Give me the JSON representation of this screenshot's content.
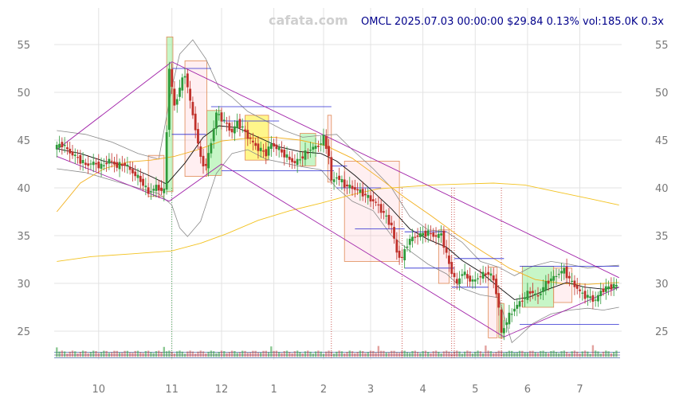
{
  "watermark": "cafata.com",
  "title": "OMCL 2025.07.03 00:00:00 $29.84 0.13% vol:185.0K 0.3x",
  "chart_data": {
    "type": "candlestick",
    "ylim": [
      22,
      58
    ],
    "y_ticks": [
      25,
      30,
      35,
      40,
      45,
      50,
      55
    ],
    "x_ticks": [
      {
        "label": "10",
        "x": 9.55
      },
      {
        "label": "11",
        "x": 10.95
      },
      {
        "label": "12",
        "x": 11.9
      },
      {
        "label": "1",
        "x": 12.9
      },
      {
        "label": "2",
        "x": 13.85
      },
      {
        "label": "3",
        "x": 14.75
      },
      {
        "label": "4",
        "x": 15.75
      },
      {
        "label": "5",
        "x": 16.75
      },
      {
        "label": "6",
        "x": 17.75
      },
      {
        "label": "7",
        "x": 18.75
      }
    ],
    "xlim": [
      8.7,
      19.05
    ],
    "grid": true,
    "price_path": [
      [
        8.75,
        44.2
      ],
      [
        8.9,
        44.6
      ],
      [
        9.05,
        43.7
      ],
      [
        9.2,
        43.1
      ],
      [
        9.35,
        42.4
      ],
      [
        9.5,
        42.6
      ],
      [
        9.65,
        42.2
      ],
      [
        9.8,
        42.9
      ],
      [
        9.95,
        42.3
      ],
      [
        10.1,
        42.5
      ],
      [
        10.25,
        41.6
      ],
      [
        10.4,
        40.8
      ],
      [
        10.55,
        39.5
      ],
      [
        10.7,
        40.1
      ],
      [
        10.85,
        39.6
      ],
      [
        10.95,
        52.5
      ],
      [
        11.05,
        48.5
      ],
      [
        11.15,
        50.5
      ],
      [
        11.25,
        52.0
      ],
      [
        11.35,
        49.0
      ],
      [
        11.45,
        46.2
      ],
      [
        11.55,
        43.0
      ],
      [
        11.65,
        42.2
      ],
      [
        11.75,
        44.8
      ],
      [
        11.85,
        47.8
      ],
      [
        11.95,
        47.3
      ],
      [
        12.05,
        46.6
      ],
      [
        12.15,
        45.8
      ],
      [
        12.25,
        46.9
      ],
      [
        12.35,
        46.2
      ],
      [
        12.5,
        45.0
      ],
      [
        12.65,
        44.1
      ],
      [
        12.8,
        43.6
      ],
      [
        12.9,
        44.6
      ],
      [
        13.05,
        44.0
      ],
      [
        13.2,
        43.2
      ],
      [
        13.35,
        42.6
      ],
      [
        13.5,
        43.3
      ],
      [
        13.65,
        44.1
      ],
      [
        13.8,
        44.4
      ],
      [
        13.9,
        45.2
      ],
      [
        14.0,
        43.4
      ],
      [
        14.05,
        40.6
      ],
      [
        14.15,
        41.2
      ],
      [
        14.3,
        40.3
      ],
      [
        14.45,
        40.0
      ],
      [
        14.6,
        39.6
      ],
      [
        14.75,
        39.0
      ],
      [
        14.9,
        38.4
      ],
      [
        15.05,
        37.3
      ],
      [
        15.2,
        36.0
      ],
      [
        15.3,
        33.2
      ],
      [
        15.4,
        32.6
      ],
      [
        15.5,
        34.2
      ],
      [
        15.6,
        34.8
      ],
      [
        15.75,
        35.1
      ],
      [
        15.9,
        35.3
      ],
      [
        16.05,
        34.9
      ],
      [
        16.15,
        35.2
      ],
      [
        16.25,
        32.9
      ],
      [
        16.35,
        31.2
      ],
      [
        16.45,
        29.9
      ],
      [
        16.55,
        31.2
      ],
      [
        16.65,
        30.6
      ],
      [
        16.75,
        30.2
      ],
      [
        16.9,
        30.8
      ],
      [
        17.05,
        31.1
      ],
      [
        17.15,
        30.4
      ],
      [
        17.25,
        27.5
      ],
      [
        17.3,
        24.6
      ],
      [
        17.35,
        25.5
      ],
      [
        17.45,
        26.6
      ],
      [
        17.55,
        27.4
      ],
      [
        17.7,
        28.3
      ],
      [
        17.85,
        29.2
      ],
      [
        18.0,
        28.6
      ],
      [
        18.1,
        29.6
      ],
      [
        18.2,
        30.3
      ],
      [
        18.3,
        30.6
      ],
      [
        18.4,
        31.1
      ],
      [
        18.5,
        31.4
      ],
      [
        18.6,
        30.4
      ],
      [
        18.7,
        29.8
      ],
      [
        18.8,
        29.1
      ],
      [
        18.9,
        28.7
      ],
      [
        19.0,
        28.5
      ],
      [
        19.1,
        28.2
      ],
      [
        19.2,
        29.2
      ],
      [
        19.35,
        29.6
      ],
      [
        19.5,
        29.8
      ]
    ],
    "sma_short": [
      [
        8.75,
        44.1
      ],
      [
        9.2,
        43.6
      ],
      [
        9.65,
        42.8
      ],
      [
        10.1,
        42.3
      ],
      [
        10.55,
        41.2
      ],
      [
        10.85,
        40.4
      ],
      [
        11.2,
        42.6
      ],
      [
        11.55,
        45.3
      ],
      [
        11.85,
        46.5
      ],
      [
        12.2,
        46.3
      ],
      [
        12.6,
        45.3
      ],
      [
        13.0,
        44.3
      ],
      [
        13.4,
        43.8
      ],
      [
        13.8,
        43.6
      ],
      [
        14.1,
        42.8
      ],
      [
        14.45,
        41.3
      ],
      [
        14.8,
        39.6
      ],
      [
        15.15,
        37.8
      ],
      [
        15.5,
        35.7
      ],
      [
        15.85,
        34.6
      ],
      [
        16.2,
        33.8
      ],
      [
        16.5,
        32.4
      ],
      [
        16.85,
        31.2
      ],
      [
        17.2,
        29.6
      ],
      [
        17.5,
        28.3
      ],
      [
        17.8,
        28.6
      ],
      [
        18.15,
        29.4
      ],
      [
        18.5,
        30.1
      ],
      [
        18.85,
        29.6
      ],
      [
        19.2,
        29.4
      ],
      [
        19.5,
        29.6
      ]
    ],
    "sma_mid": [
      [
        8.75,
        37.5
      ],
      [
        9.2,
        40.5
      ],
      [
        9.65,
        42.0
      ],
      [
        10.1,
        42.7
      ],
      [
        10.55,
        42.9
      ],
      [
        11.0,
        43.3
      ],
      [
        11.45,
        44.0
      ],
      [
        11.9,
        44.9
      ],
      [
        12.4,
        45.2
      ],
      [
        12.9,
        45.3
      ],
      [
        13.4,
        45.0
      ],
      [
        13.9,
        44.4
      ],
      [
        14.4,
        43.1
      ],
      [
        14.9,
        41.1
      ],
      [
        15.4,
        39.0
      ],
      [
        15.9,
        37.1
      ],
      [
        16.4,
        35.1
      ],
      [
        16.9,
        33.3
      ],
      [
        17.4,
        31.6
      ],
      [
        17.9,
        30.4
      ],
      [
        18.4,
        30.0
      ],
      [
        18.9,
        29.9
      ],
      [
        19.5,
        30.1
      ]
    ],
    "sma_long": [
      [
        8.75,
        32.3
      ],
      [
        9.4,
        32.8
      ],
      [
        10.2,
        33.1
      ],
      [
        10.95,
        33.4
      ],
      [
        11.5,
        34.2
      ],
      [
        12.0,
        35.2
      ],
      [
        12.6,
        36.6
      ],
      [
        13.2,
        37.6
      ],
      [
        13.8,
        38.4
      ],
      [
        14.4,
        39.3
      ],
      [
        14.9,
        39.9
      ],
      [
        15.4,
        40.1
      ],
      [
        15.9,
        40.3
      ],
      [
        16.5,
        40.4
      ],
      [
        17.1,
        40.5
      ],
      [
        17.7,
        40.3
      ],
      [
        18.3,
        39.6
      ],
      [
        19.0,
        38.8
      ],
      [
        19.5,
        38.2
      ]
    ],
    "bb_upper": [
      [
        8.75,
        46.0
      ],
      [
        9.3,
        45.6
      ],
      [
        9.8,
        44.8
      ],
      [
        10.3,
        43.6
      ],
      [
        10.7,
        43.0
      ],
      [
        10.95,
        50.5
      ],
      [
        11.1,
        54.0
      ],
      [
        11.35,
        55.5
      ],
      [
        11.6,
        53.5
      ],
      [
        11.85,
        50.5
      ],
      [
        12.1,
        49.5
      ],
      [
        12.4,
        48.0
      ],
      [
        12.75,
        47.0
      ],
      [
        13.1,
        46.0
      ],
      [
        13.45,
        45.3
      ],
      [
        13.8,
        45.5
      ],
      [
        14.1,
        45.6
      ],
      [
        14.4,
        44.0
      ],
      [
        14.8,
        42.0
      ],
      [
        15.15,
        40.0
      ],
      [
        15.5,
        37.0
      ],
      [
        15.85,
        35.6
      ],
      [
        16.2,
        35.4
      ],
      [
        16.5,
        34.3
      ],
      [
        16.85,
        32.3
      ],
      [
        17.2,
        31.7
      ],
      [
        17.5,
        30.8
      ],
      [
        17.85,
        31.8
      ],
      [
        18.2,
        32.3
      ],
      [
        18.55,
        32.0
      ],
      [
        18.9,
        31.6
      ],
      [
        19.2,
        31.8
      ],
      [
        19.5,
        31.9
      ]
    ],
    "bb_lower": [
      [
        8.75,
        42.0
      ],
      [
        9.3,
        41.6
      ],
      [
        9.8,
        40.8
      ],
      [
        10.3,
        40.0
      ],
      [
        10.7,
        39.4
      ],
      [
        10.95,
        38.2
      ],
      [
        11.1,
        35.8
      ],
      [
        11.25,
        34.9
      ],
      [
        11.5,
        36.5
      ],
      [
        11.8,
        41.5
      ],
      [
        12.1,
        43.6
      ],
      [
        12.4,
        44.0
      ],
      [
        12.75,
        43.0
      ],
      [
        13.1,
        42.6
      ],
      [
        13.45,
        42.2
      ],
      [
        13.8,
        41.9
      ],
      [
        14.1,
        40.0
      ],
      [
        14.4,
        38.6
      ],
      [
        14.8,
        37.6
      ],
      [
        15.15,
        35.0
      ],
      [
        15.5,
        33.4
      ],
      [
        15.85,
        32.0
      ],
      [
        16.2,
        31.0
      ],
      [
        16.5,
        29.5
      ],
      [
        16.85,
        28.8
      ],
      [
        17.2,
        28.5
      ],
      [
        17.45,
        23.8
      ],
      [
        17.6,
        24.5
      ],
      [
        17.85,
        25.8
      ],
      [
        18.2,
        26.8
      ],
      [
        18.55,
        27.2
      ],
      [
        18.9,
        27.4
      ],
      [
        19.2,
        27.2
      ],
      [
        19.5,
        27.5
      ]
    ],
    "trend_lines": [
      {
        "from": [
          8.75,
          43.3
        ],
        "to": [
          10.9,
          38.6
        ]
      },
      {
        "from": [
          8.75,
          44.0
        ],
        "to": [
          10.95,
          53.2
        ]
      },
      {
        "from": [
          10.9,
          38.6
        ],
        "to": [
          11.9,
          42.5
        ]
      },
      {
        "from": [
          10.95,
          53.2
        ],
        "to": [
          19.5,
          30.6
        ]
      },
      {
        "from": [
          11.9,
          42.5
        ],
        "to": [
          17.3,
          24.4
        ]
      },
      {
        "from": [
          17.3,
          24.4
        ],
        "to": [
          19.5,
          29.6
        ]
      }
    ],
    "level_lines": [
      {
        "from": 10.95,
        "to": 11.7,
        "y": 52.5
      },
      {
        "from": 10.95,
        "to": 11.6,
        "y": 45.6
      },
      {
        "from": 11.7,
        "to": 14.0,
        "y": 48.5
      },
      {
        "from": 11.9,
        "to": 13.0,
        "y": 47.0
      },
      {
        "from": 11.9,
        "to": 14.05,
        "y": 41.8
      },
      {
        "from": 14.0,
        "to": 14.3,
        "y": 42.3
      },
      {
        "from": 14.1,
        "to": 14.95,
        "y": 40.0
      },
      {
        "from": 14.45,
        "to": 15.4,
        "y": 35.7
      },
      {
        "from": 15.4,
        "to": 16.2,
        "y": 35.4
      },
      {
        "from": 15.4,
        "to": 16.35,
        "y": 31.6
      },
      {
        "from": 16.3,
        "to": 17.0,
        "y": 29.6
      },
      {
        "from": 16.35,
        "to": 17.3,
        "y": 32.6
      },
      {
        "from": 17.6,
        "to": 19.5,
        "y": 31.8
      },
      {
        "from": 17.6,
        "to": 19.5,
        "y": 25.7
      }
    ],
    "zones": [
      {
        "x0": 10.5,
        "x1": 10.8,
        "y0": 39.1,
        "y1": 43.4,
        "kind": "red"
      },
      {
        "x0": 10.85,
        "x1": 10.97,
        "y0": 39.6,
        "y1": 55.8,
        "kind": "green"
      },
      {
        "x0": 11.2,
        "x1": 11.62,
        "y0": 41.2,
        "y1": 53.3,
        "kind": "red"
      },
      {
        "x0": 11.62,
        "x1": 11.9,
        "y0": 41.3,
        "y1": 48.1,
        "kind": "green"
      },
      {
        "x0": 12.35,
        "x1": 12.8,
        "y0": 42.9,
        "y1": 47.6,
        "kind": "yellow"
      },
      {
        "x0": 13.4,
        "x1": 13.7,
        "y0": 42.3,
        "y1": 45.7,
        "kind": "green"
      },
      {
        "x0": 13.93,
        "x1": 14.0,
        "y0": 40.6,
        "y1": 47.6,
        "kind": "red"
      },
      {
        "x0": 14.25,
        "x1": 15.3,
        "y0": 32.3,
        "y1": 42.8,
        "kind": "red"
      },
      {
        "x0": 16.05,
        "x1": 16.25,
        "y0": 30.0,
        "y1": 35.6,
        "kind": "red"
      },
      {
        "x0": 17.0,
        "x1": 17.17,
        "y0": 24.3,
        "y1": 31.7,
        "kind": "red"
      },
      {
        "x0": 17.2,
        "x1": 17.3,
        "y0": 24.3,
        "y1": 27.9,
        "kind": "green"
      },
      {
        "x0": 17.65,
        "x1": 18.25,
        "y0": 27.5,
        "y1": 31.8,
        "kind": "green"
      },
      {
        "x0": 18.25,
        "x1": 18.6,
        "y0": 28.0,
        "y1": 31.6,
        "kind": "red"
      }
    ],
    "event_lines": [
      10.95,
      14.0,
      15.35,
      16.3,
      16.35,
      17.25
    ],
    "volume_baseline": 22.3,
    "volume_max_height": 1.0
  }
}
